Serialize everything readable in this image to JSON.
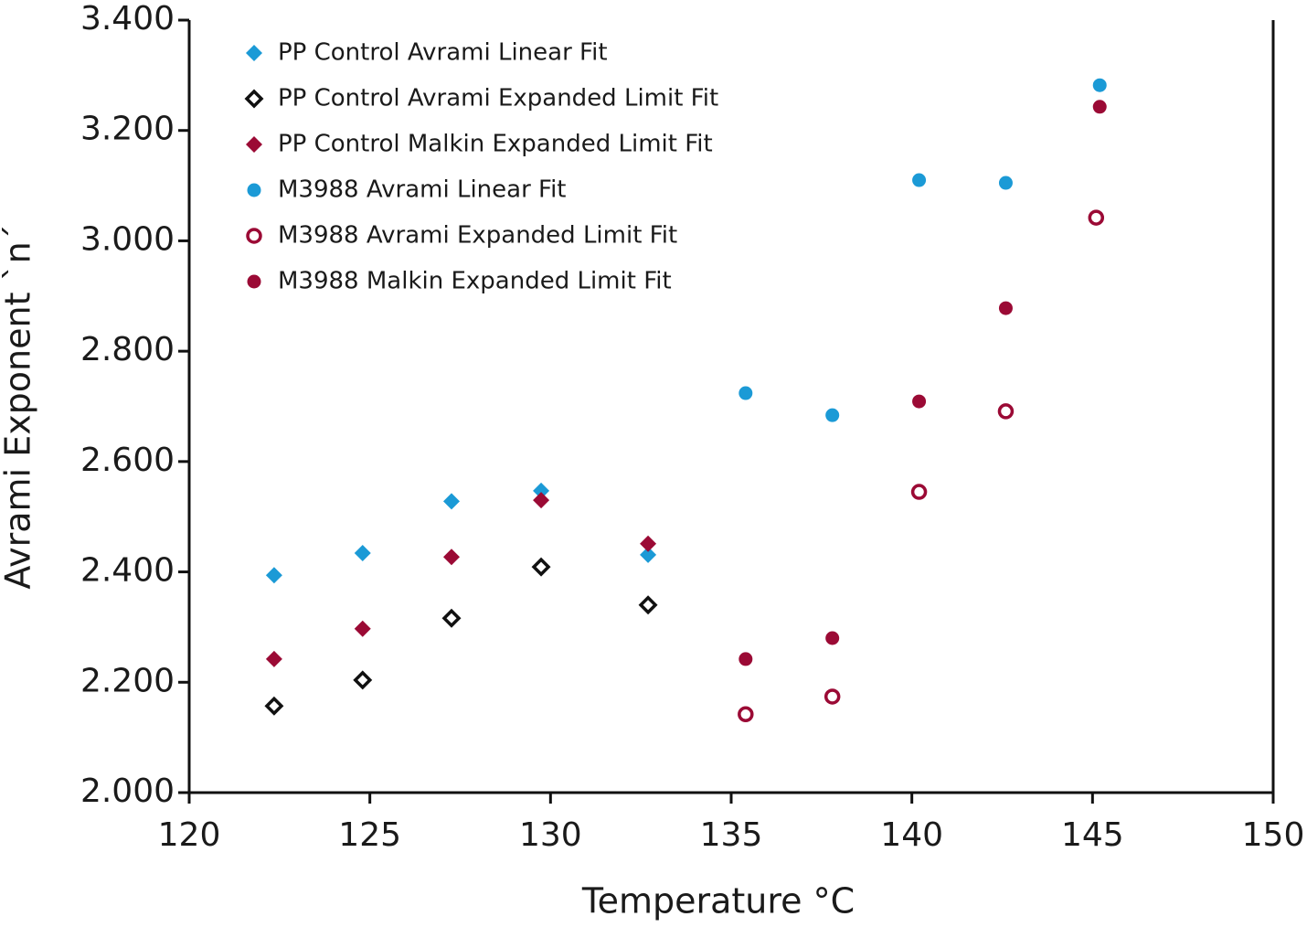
{
  "chart_data": {
    "type": "scatter",
    "xlabel": "Temperature °C",
    "ylabel": "Avrami Exponent `n´",
    "xlim": [
      120,
      150
    ],
    "xticks": [
      120,
      125,
      130,
      135,
      140,
      145,
      150
    ],
    "ylim": [
      2,
      3.4
    ],
    "yticks": [
      {
        "value": 2,
        "label": "2.000"
      },
      {
        "value": 2.2,
        "label": "2.200"
      },
      {
        "value": 2.4,
        "label": "2.400"
      },
      {
        "value": 2.6,
        "label": "2.600"
      },
      {
        "value": 2.8,
        "label": "2.800"
      },
      {
        "value": 3,
        "label": "3.000"
      },
      {
        "value": 3.2,
        "label": "3.200"
      },
      {
        "value": 3.4,
        "label": "3.400"
      }
    ],
    "legend": "upper left",
    "series": [
      {
        "name": "PP Control Avrami Linear Fit",
        "color": "#1b9ad6",
        "marker": "diamond",
        "filled": true,
        "x": [
          122.35,
          124.8,
          127.26,
          129.74,
          132.7
        ],
        "values": [
          2.394,
          2.434,
          2.528,
          2.547,
          2.431
        ]
      },
      {
        "name": "PP Control Avrami Expanded Limit Fit",
        "color": "#111111",
        "marker": "diamond",
        "filled": false,
        "x": [
          122.35,
          124.8,
          127.26,
          129.74,
          132.7
        ],
        "values": [
          2.157,
          2.204,
          2.316,
          2.409,
          2.34
        ]
      },
      {
        "name": "PP Control Malkin Expanded Limit Fit",
        "color": "#9b0a35",
        "marker": "diamond",
        "filled": true,
        "x": [
          122.35,
          124.8,
          127.26,
          129.74,
          132.7
        ],
        "values": [
          2.242,
          2.297,
          2.427,
          2.53,
          2.451
        ]
      },
      {
        "name": "M3988 Avrami Linear Fit",
        "color": "#1b9ad6",
        "marker": "circle",
        "filled": true,
        "x": [
          135.4,
          137.8,
          140.2,
          142.6,
          145.2
        ],
        "values": [
          2.724,
          2.684,
          3.11,
          3.105,
          3.282
        ]
      },
      {
        "name": "M3988 Avrami Expanded Limit Fit",
        "color": "#9b0a35",
        "marker": "circle",
        "filled": false,
        "x": [
          135.4,
          137.8,
          140.2,
          142.6,
          145.1
        ],
        "values": [
          2.142,
          2.174,
          2.545,
          2.691,
          3.042
        ]
      },
      {
        "name": "M3988 Malkin Expanded Limit Fit",
        "color": "#9b0a35",
        "marker": "circle",
        "filled": true,
        "x": [
          135.4,
          137.8,
          140.2,
          142.6,
          145.2
        ],
        "values": [
          2.242,
          2.28,
          2.709,
          2.878,
          3.243
        ]
      }
    ]
  }
}
